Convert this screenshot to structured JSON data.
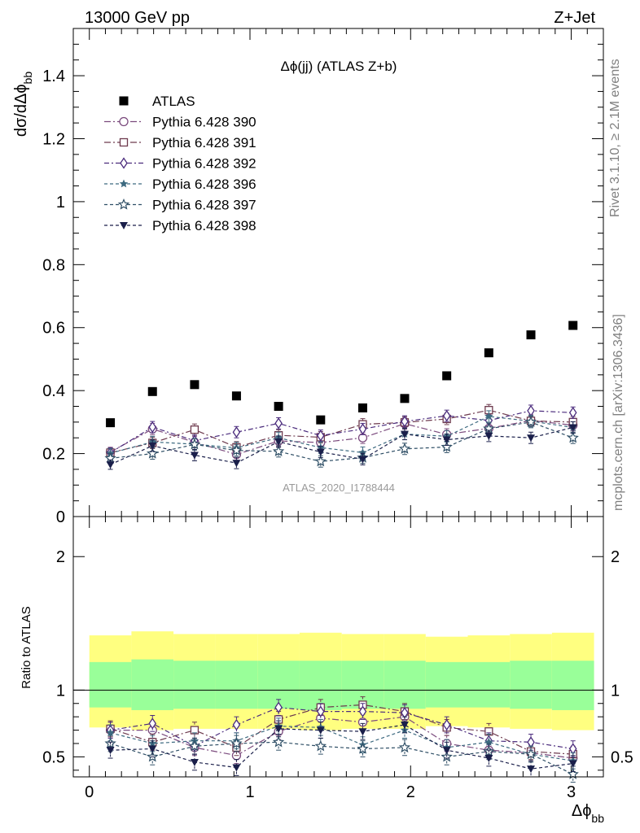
{
  "header": {
    "left_label": "13000 GeV pp",
    "right_label": "Z+Jet",
    "side_label_1": "Rivet 3.1.10, ≥ 2.1M events",
    "side_label_2": "mcplots.cern.ch [arXiv:1306.3436]",
    "watermark": "ATLAS_2020_I1788444"
  },
  "chart_data": [
    {
      "type": "scatter",
      "title": "Δϕ(jj) (ATLAS Z+b)",
      "xlabel": "",
      "ylabel": "dσ/dΔϕ",
      "ylabel_sub": "bb",
      "xlim": [
        -0.1,
        3.2
      ],
      "ylim": [
        0,
        1.55
      ],
      "yticks": [
        0,
        0.2,
        0.4,
        0.6,
        0.8,
        1,
        1.2,
        1.4
      ],
      "ytick_labels": [
        "0",
        "0.2",
        "0.4",
        "0.6",
        "0.8",
        "1",
        "1.2",
        "1.4"
      ],
      "legend_position": "top-left",
      "x": [
        0.131,
        0.393,
        0.655,
        0.916,
        1.178,
        1.44,
        1.702,
        1.963,
        2.225,
        2.487,
        2.749,
        3.011
      ],
      "series": [
        {
          "name": "ATLAS",
          "marker": "square-filled",
          "color": "#000000",
          "dash": "none",
          "values": [
            0.298,
            0.397,
            0.419,
            0.383,
            0.35,
            0.307,
            0.345,
            0.375,
            0.447,
            0.52,
            0.577,
            0.607
          ],
          "errors": [
            0.008,
            0.008,
            0.008,
            0.008,
            0.008,
            0.008,
            0.008,
            0.008,
            0.008,
            0.008,
            0.008,
            0.008
          ]
        },
        {
          "name": "Pythia 6.428 390",
          "marker": "circle-open",
          "color": "#7b4a7d",
          "dash": "8,3,2,3",
          "values": [
            0.205,
            0.278,
            0.236,
            0.197,
            0.24,
            0.235,
            0.25,
            0.295,
            0.261,
            0.28,
            0.305,
            0.29
          ],
          "errors": [
            0.015,
            0.018,
            0.018,
            0.018,
            0.018,
            0.018,
            0.018,
            0.018,
            0.018,
            0.018,
            0.018,
            0.018
          ]
        },
        {
          "name": "Pythia 6.428 391",
          "marker": "square-open",
          "color": "#6e3a4e",
          "dash": "8,3,2,3",
          "values": [
            0.203,
            0.234,
            0.276,
            0.22,
            0.258,
            0.252,
            0.293,
            0.299,
            0.31,
            0.338,
            0.304,
            0.3
          ],
          "errors": [
            0.015,
            0.018,
            0.018,
            0.018,
            0.018,
            0.018,
            0.018,
            0.018,
            0.018,
            0.018,
            0.018,
            0.018
          ]
        },
        {
          "name": "Pythia 6.428 392",
          "marker": "diamond-open",
          "color": "#4b2c7d",
          "dash": "6,3,2,3",
          "values": [
            0.203,
            0.284,
            0.241,
            0.268,
            0.296,
            0.257,
            0.278,
            0.302,
            0.32,
            0.305,
            0.336,
            0.33
          ],
          "errors": [
            0.015,
            0.018,
            0.018,
            0.018,
            0.018,
            0.018,
            0.018,
            0.018,
            0.018,
            0.018,
            0.018,
            0.018
          ]
        },
        {
          "name": "Pythia 6.428 396",
          "marker": "star-filled",
          "color": "#3d6a80",
          "dash": "4,3",
          "values": [
            0.201,
            0.237,
            0.23,
            0.218,
            0.25,
            0.219,
            0.203,
            0.262,
            0.255,
            0.318,
            0.303,
            0.283
          ],
          "errors": [
            0.015,
            0.018,
            0.018,
            0.018,
            0.018,
            0.018,
            0.018,
            0.018,
            0.018,
            0.018,
            0.018,
            0.018
          ]
        },
        {
          "name": "Pythia 6.428 397",
          "marker": "star-open",
          "color": "#2f4f66",
          "dash": "4,3",
          "values": [
            0.185,
            0.2,
            0.229,
            0.21,
            0.207,
            0.175,
            0.187,
            0.215,
            0.221,
            0.279,
            0.3,
            0.25
          ],
          "errors": [
            0.015,
            0.018,
            0.018,
            0.018,
            0.018,
            0.018,
            0.018,
            0.018,
            0.018,
            0.018,
            0.018,
            0.018
          ]
        },
        {
          "name": "Pythia 6.428 398",
          "marker": "triangle-down-filled",
          "color": "#1a1f4a",
          "dash": "4,3",
          "values": [
            0.165,
            0.225,
            0.195,
            0.17,
            0.238,
            0.205,
            0.182,
            0.262,
            0.244,
            0.256,
            0.25,
            0.283
          ],
          "errors": [
            0.015,
            0.018,
            0.018,
            0.018,
            0.018,
            0.018,
            0.018,
            0.018,
            0.018,
            0.018,
            0.018,
            0.018
          ]
        }
      ]
    },
    {
      "type": "scatter",
      "title": "",
      "xlabel": "Δϕ",
      "xlabel_sub": "bb",
      "ylabel": "Ratio to ATLAS",
      "xlim": [
        -0.1,
        3.2
      ],
      "ylim": [
        0.35,
        2.3
      ],
      "xticks": [
        0,
        1,
        2,
        3
      ],
      "xtick_labels": [
        "0",
        "1",
        "2",
        "3"
      ],
      "yticks": [
        0.5,
        1,
        2
      ],
      "ytick_labels": [
        "0.5",
        "1",
        "2"
      ],
      "reference_line": 1,
      "bands": {
        "edges": [
          0,
          0.262,
          0.524,
          0.785,
          1.047,
          1.309,
          1.571,
          1.833,
          2.094,
          2.356,
          2.618,
          2.88,
          3.142
        ],
        "outer_color": "#ffff80",
        "inner_color": "#99ff99",
        "outer_lo": [
          0.72,
          0.7,
          0.71,
          0.71,
          0.71,
          0.7,
          0.71,
          0.71,
          0.73,
          0.72,
          0.71,
          0.7
        ],
        "outer_hi": [
          1.41,
          1.44,
          1.42,
          1.42,
          1.42,
          1.43,
          1.42,
          1.42,
          1.4,
          1.41,
          1.42,
          1.43
        ],
        "inner_lo": [
          0.87,
          0.85,
          0.86,
          0.86,
          0.86,
          0.85,
          0.86,
          0.86,
          0.87,
          0.87,
          0.86,
          0.85
        ],
        "inner_hi": [
          1.21,
          1.23,
          1.22,
          1.22,
          1.22,
          1.22,
          1.22,
          1.22,
          1.21,
          1.21,
          1.22,
          1.22
        ]
      },
      "x": [
        0.131,
        0.393,
        0.655,
        0.916,
        1.178,
        1.44,
        1.702,
        1.963,
        2.225,
        2.487,
        2.749,
        3.011
      ],
      "series": [
        {
          "name": "Pythia 6.428 390",
          "marker": "circle-open",
          "color": "#7b4a7d",
          "dash": "8,3,2,3",
          "values": [
            0.7,
            0.7,
            0.57,
            0.51,
            0.69,
            0.79,
            0.76,
            0.8,
            0.6,
            0.55,
            0.53,
            0.49
          ],
          "errors": [
            0.06,
            0.06,
            0.06,
            0.06,
            0.06,
            0.06,
            0.06,
            0.06,
            0.06,
            0.06,
            0.06,
            0.06
          ]
        },
        {
          "name": "Pythia 6.428 391",
          "marker": "square-open",
          "color": "#6e3a4e",
          "dash": "8,3,2,3",
          "values": [
            0.71,
            0.61,
            0.7,
            0.57,
            0.78,
            0.87,
            0.89,
            0.84,
            0.72,
            0.69,
            0.54,
            0.52
          ],
          "errors": [
            0.06,
            0.06,
            0.06,
            0.06,
            0.06,
            0.06,
            0.06,
            0.06,
            0.06,
            0.06,
            0.06,
            0.06
          ]
        },
        {
          "name": "Pythia 6.428 392",
          "marker": "diamond-open",
          "color": "#4b2c7d",
          "dash": "6,3,2,3",
          "values": [
            0.7,
            0.75,
            0.58,
            0.74,
            0.87,
            0.84,
            0.84,
            0.83,
            0.74,
            0.62,
            0.61,
            0.56
          ],
          "errors": [
            0.06,
            0.06,
            0.06,
            0.06,
            0.06,
            0.06,
            0.06,
            0.06,
            0.06,
            0.06,
            0.06,
            0.06
          ]
        },
        {
          "name": "Pythia 6.428 396",
          "marker": "star-filled",
          "color": "#3d6a80",
          "dash": "4,3",
          "values": [
            0.68,
            0.6,
            0.62,
            0.62,
            0.73,
            0.72,
            0.59,
            0.7,
            0.57,
            0.61,
            0.52,
            0.47
          ],
          "errors": [
            0.06,
            0.06,
            0.06,
            0.06,
            0.06,
            0.06,
            0.06,
            0.06,
            0.06,
            0.06,
            0.06,
            0.06
          ]
        },
        {
          "name": "Pythia 6.428 397",
          "marker": "star-open",
          "color": "#2f4f66",
          "dash": "4,3",
          "values": [
            0.6,
            0.5,
            0.58,
            0.6,
            0.61,
            0.58,
            0.56,
            0.57,
            0.5,
            0.54,
            0.52,
            0.37
          ],
          "errors": [
            0.06,
            0.06,
            0.06,
            0.06,
            0.06,
            0.06,
            0.06,
            0.06,
            0.06,
            0.06,
            0.06,
            0.06
          ]
        },
        {
          "name": "Pythia 6.428 398",
          "marker": "triangle-down-filled",
          "color": "#1a1f4a",
          "dash": "4,3",
          "values": [
            0.55,
            0.56,
            0.46,
            0.42,
            0.71,
            0.7,
            0.69,
            0.74,
            0.55,
            0.49,
            0.41,
            0.45
          ],
          "errors": [
            0.06,
            0.06,
            0.06,
            0.06,
            0.06,
            0.06,
            0.06,
            0.06,
            0.06,
            0.06,
            0.06,
            0.06
          ]
        }
      ]
    }
  ]
}
